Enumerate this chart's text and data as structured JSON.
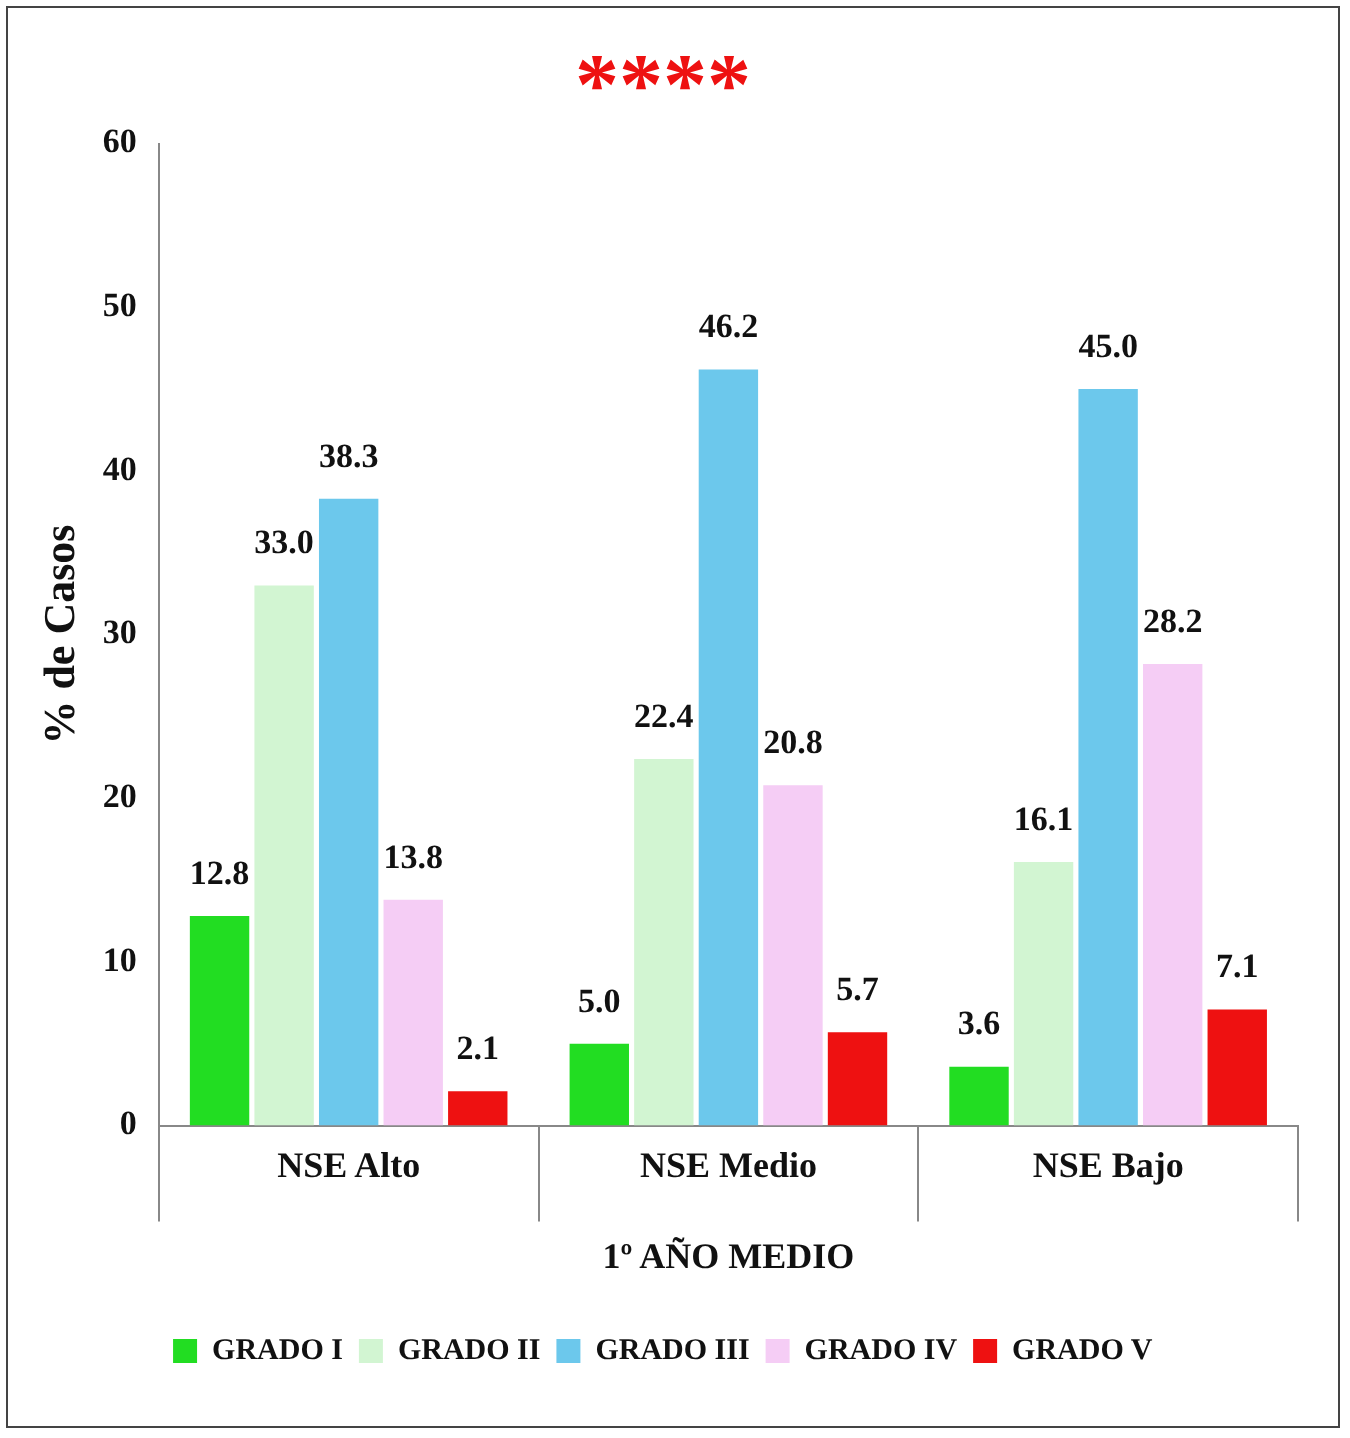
{
  "chart_data": {
    "type": "bar",
    "title": "****",
    "ylabel": "% de Casos",
    "xlabel": "1º AÑO MEDIO",
    "categories": [
      "NSE Alto",
      "NSE Medio",
      "NSE Bajo"
    ],
    "series": [
      {
        "name": "GRADO I",
        "color": "#22dd22",
        "values": [
          12.8,
          5.0,
          3.6
        ],
        "value_labels": [
          "12.8",
          "5.0",
          "3.6"
        ]
      },
      {
        "name": "GRADO II",
        "color": "#d2f5d2",
        "values": [
          33.0,
          22.4,
          16.1
        ],
        "value_labels": [
          "33.0",
          "22.4",
          "16.1"
        ]
      },
      {
        "name": "GRADO III",
        "color": "#6cc8ec",
        "values": [
          38.3,
          46.2,
          45.0
        ],
        "value_labels": [
          "38.3",
          "46.2",
          "45.0"
        ]
      },
      {
        "name": "GRADO IV",
        "color": "#f5cdf5",
        "values": [
          13.8,
          20.8,
          28.2
        ],
        "value_labels": [
          "13.8",
          "20.8",
          "28.2"
        ]
      },
      {
        "name": "GRADO V",
        "color": "#ee1111",
        "values": [
          2.1,
          5.7,
          7.1
        ],
        "value_labels": [
          "2.1",
          "5.7",
          "7.1"
        ]
      }
    ],
    "ylim": [
      0,
      60
    ],
    "yticks": [
      0,
      10,
      20,
      30,
      40,
      50,
      60
    ],
    "grid": false,
    "legend": "bottom"
  }
}
